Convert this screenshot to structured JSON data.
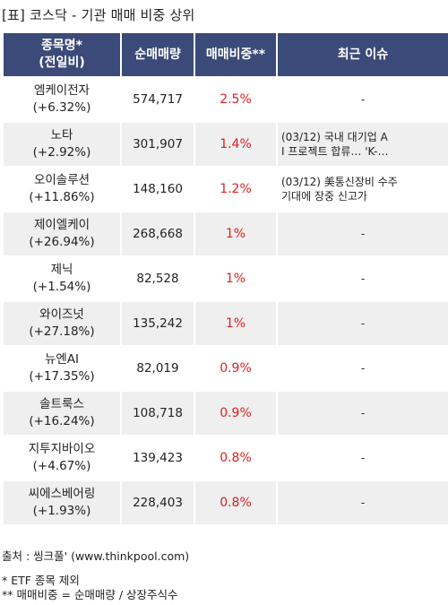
{
  "title": "[표] 코스닥 - 기관 매매 비중 상위",
  "headers": {
    "name_line1": "종목명*",
    "name_line2": "(전일비)",
    "volume": "순매매량",
    "ratio": "매매비중**",
    "issue": "최근 이슈"
  },
  "rows": [
    {
      "name": "엠케이전자",
      "change": "(+6.32%)",
      "volume": "574,717",
      "ratio": "2.5%",
      "issue_line1": "-",
      "issue_line2": ""
    },
    {
      "name": "노타",
      "change": "(+2.92%)",
      "volume": "301,907",
      "ratio": "1.4%",
      "issue_line1": "(03/12) 국내 대기업 A",
      "issue_line2": "I 프로젝트 합류… 'K-…"
    },
    {
      "name": "오이솔루션",
      "change": "(+11.86%)",
      "volume": "148,160",
      "ratio": "1.2%",
      "issue_line1": "(03/12) 美통신장비 수주",
      "issue_line2": "기대에 장중 신고가"
    },
    {
      "name": "제이엘케이",
      "change": "(+26.94%)",
      "volume": "268,668",
      "ratio": "1%",
      "issue_line1": "-",
      "issue_line2": ""
    },
    {
      "name": "제닉",
      "change": "(+1.54%)",
      "volume": "82,528",
      "ratio": "1%",
      "issue_line1": "-",
      "issue_line2": ""
    },
    {
      "name": "와이즈넛",
      "change": "(+27.18%)",
      "volume": "135,242",
      "ratio": "1%",
      "issue_line1": "-",
      "issue_line2": ""
    },
    {
      "name": "뉴엔AI",
      "change": "(+17.35%)",
      "volume": "82,019",
      "ratio": "0.9%",
      "issue_line1": "-",
      "issue_line2": ""
    },
    {
      "name": "솔트룩스",
      "change": "(+16.24%)",
      "volume": "108,718",
      "ratio": "0.9%",
      "issue_line1": "-",
      "issue_line2": ""
    },
    {
      "name": "지투지바이오",
      "change": "(+4.67%)",
      "volume": "139,423",
      "ratio": "0.8%",
      "issue_line1": "-",
      "issue_line2": ""
    },
    {
      "name": "씨에스베어링",
      "change": "(+1.93%)",
      "volume": "228,403",
      "ratio": "0.8%",
      "issue_line1": "-",
      "issue_line2": ""
    }
  ],
  "footer": {
    "source": "출처 : 씽크풀' (www.thinkpool.com)",
    "note1": "* ETF 종목 제외",
    "note2": "** 매매비중 = 순매매량 / 상장주식수"
  }
}
